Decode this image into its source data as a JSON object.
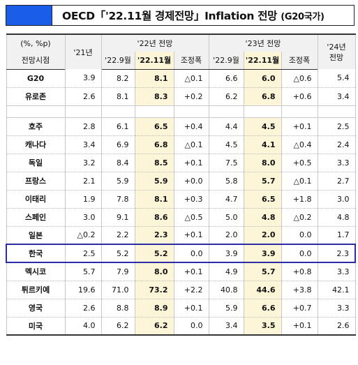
{
  "title": {
    "prefix": "OECD「'22.11월 경제전망」Inflation 전망 ",
    "suffix": "(G20국가)"
  },
  "header": {
    "unit": "(%, %p)",
    "period_label": "전망시점",
    "y21": "'21년",
    "y22": "'22년 전망",
    "y23": "'23년 전망",
    "y24": "'24년 전망",
    "sep22": "'22.9월",
    "nov22": "'22.11월",
    "adj": "조정폭"
  },
  "rows": [
    {
      "name": "G20",
      "v": [
        "3.9",
        "8.2",
        "8.1",
        "△0.1",
        "6.6",
        "6.0",
        "△0.6",
        "5.4"
      ]
    },
    {
      "name": "유로존",
      "v": [
        "2.6",
        "8.1",
        "8.3",
        "+0.2",
        "6.2",
        "6.8",
        "+0.6",
        "3.4"
      ]
    },
    {
      "name": "호주",
      "v": [
        "2.8",
        "6.1",
        "6.5",
        "+0.4",
        "4.4",
        "4.5",
        "+0.1",
        "2.5"
      ]
    },
    {
      "name": "캐나다",
      "v": [
        "3.4",
        "6.9",
        "6.8",
        "△0.1",
        "4.5",
        "4.1",
        "△0.4",
        "2.4"
      ]
    },
    {
      "name": "독일",
      "v": [
        "3.2",
        "8.4",
        "8.5",
        "+0.1",
        "7.5",
        "8.0",
        "+0.5",
        "3.3"
      ]
    },
    {
      "name": "프랑스",
      "v": [
        "2.1",
        "5.9",
        "5.9",
        "+0.0",
        "5.8",
        "5.7",
        "△0.1",
        "2.7"
      ]
    },
    {
      "name": "이태리",
      "v": [
        "1.9",
        "7.8",
        "8.1",
        "+0.3",
        "4.7",
        "6.5",
        "+1.8",
        "3.0"
      ]
    },
    {
      "name": "스페인",
      "v": [
        "3.0",
        "9.1",
        "8.6",
        "△0.5",
        "5.0",
        "4.8",
        "△0.2",
        "4.8"
      ]
    },
    {
      "name": "일본",
      "v": [
        "△0.2",
        "2.2",
        "2.3",
        "+0.1",
        "2.0",
        "2.0",
        "0.0",
        "1.7"
      ]
    },
    {
      "name": "한국",
      "v": [
        "2.5",
        "5.2",
        "5.2",
        "0.0",
        "3.9",
        "3.9",
        "0.0",
        "2.3"
      ]
    },
    {
      "name": "멕시코",
      "v": [
        "5.7",
        "7.9",
        "8.0",
        "+0.1",
        "4.9",
        "5.7",
        "+0.8",
        "3.3"
      ]
    },
    {
      "name": "튀르키예",
      "v": [
        "19.6",
        "71.0",
        "73.2",
        "+2.2",
        "40.8",
        "44.6",
        "+3.8",
        "42.1"
      ]
    },
    {
      "name": "영국",
      "v": [
        "2.6",
        "8.8",
        "8.9",
        "+0.1",
        "5.9",
        "6.6",
        "+0.7",
        "3.3"
      ]
    },
    {
      "name": "미국",
      "v": [
        "4.0",
        "6.2",
        "6.2",
        "0.0",
        "3.4",
        "3.5",
        "+0.1",
        "2.6"
      ]
    }
  ],
  "colors": {
    "swatch": "#1a5de8",
    "highlight": "#fdf5d8",
    "korea_border": "#2b2ba8"
  }
}
